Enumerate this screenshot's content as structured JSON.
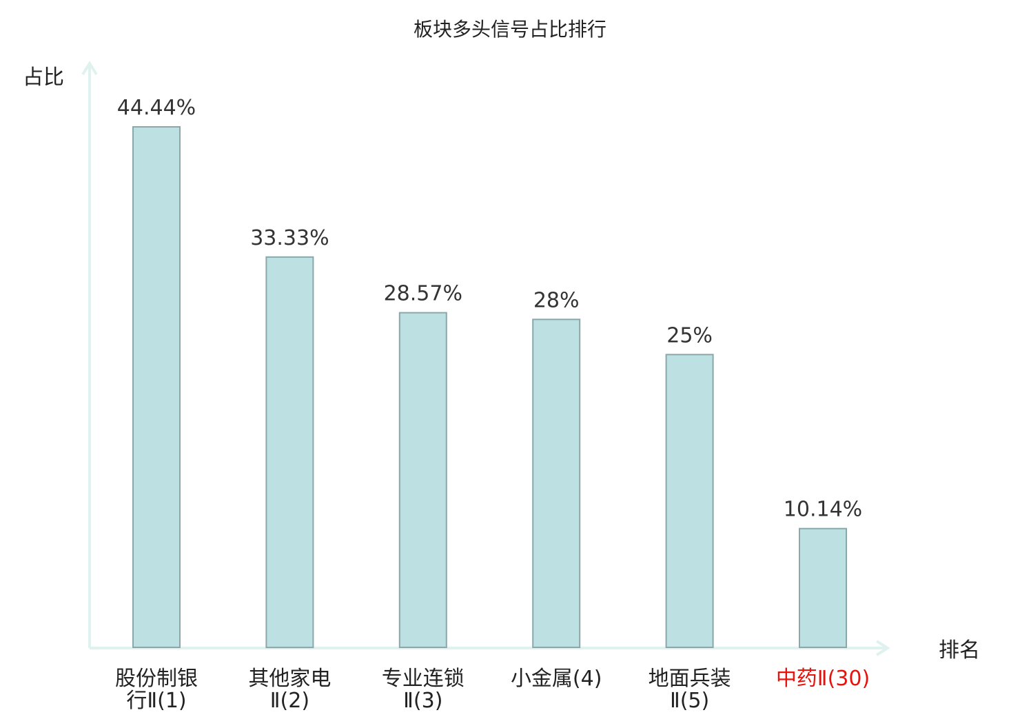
{
  "chart_data": {
    "type": "bar",
    "title": "板块多头信号占比排行",
    "ylabel": "占比",
    "xlabel": "排名",
    "categories": [
      {
        "lines": [
          "股份制银",
          "行Ⅱ(1)"
        ],
        "highlight": false
      },
      {
        "lines": [
          "其他家电",
          "Ⅱ(2)"
        ],
        "highlight": false
      },
      {
        "lines": [
          "专业连锁",
          "Ⅱ(3)"
        ],
        "highlight": false
      },
      {
        "lines": [
          "小金属(4)"
        ],
        "highlight": false
      },
      {
        "lines": [
          "地面兵装",
          "Ⅱ(5)"
        ],
        "highlight": false
      },
      {
        "lines": [
          "中药Ⅱ(30)"
        ],
        "highlight": true
      }
    ],
    "values": [
      44.44,
      33.33,
      28.57,
      28,
      25,
      10.14
    ],
    "value_labels": [
      "44.44%",
      "33.33%",
      "28.57%",
      "28%",
      "25%",
      "10.14%"
    ],
    "ylim": [
      0,
      50
    ],
    "grid": false,
    "colors": {
      "bar_fill": "#bde0e3",
      "bar_stroke": "#8aa7aa",
      "axis": "#dff2ef",
      "highlight_text": "#e8120c"
    }
  }
}
